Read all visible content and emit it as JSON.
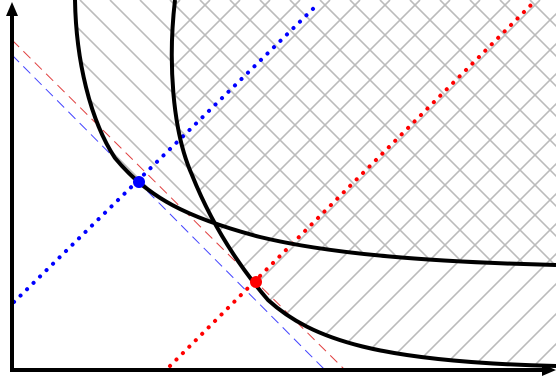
{
  "colors": {
    "background": "#ffffff",
    "axis": "#000000",
    "curve": "#000000",
    "hatch": "#bbbbbb",
    "blue": "#0000ff",
    "red": "#ff0000",
    "blue_dash": "#4444ff",
    "red_dash": "#e04040"
  },
  "icons": {
    "x_axis_arrow": "arrow-right-icon",
    "y_axis_arrow": "arrow-up-icon"
  }
}
